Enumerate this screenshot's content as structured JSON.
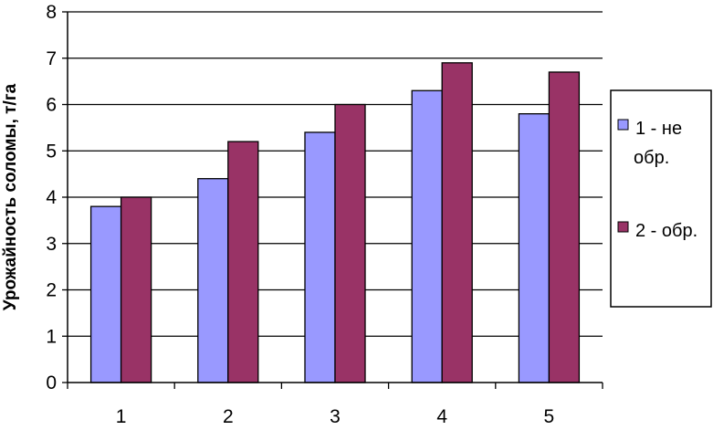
{
  "chart_data": {
    "type": "bar",
    "title": "",
    "xlabel": "",
    "ylabel": "Урожайность соломы, т/га",
    "categories": [
      "1",
      "2",
      "3",
      "4",
      "5"
    ],
    "ylim": [
      0,
      8
    ],
    "yticks": [
      "0",
      "1",
      "2",
      "3",
      "4",
      "5",
      "6",
      "7",
      "8"
    ],
    "grid": "horizontal",
    "legend_position": "right",
    "series": [
      {
        "name": "1 - не обр.",
        "legend_lines": [
          "1 - не",
          "обр."
        ],
        "color": "#9999ff",
        "values": [
          3.8,
          4.4,
          5.4,
          6.3,
          5.8
        ]
      },
      {
        "name": "2 - обр.",
        "legend_lines": [
          "2 - обр."
        ],
        "color": "#993366",
        "values": [
          4.0,
          5.2,
          6.0,
          6.9,
          6.7
        ]
      }
    ]
  }
}
